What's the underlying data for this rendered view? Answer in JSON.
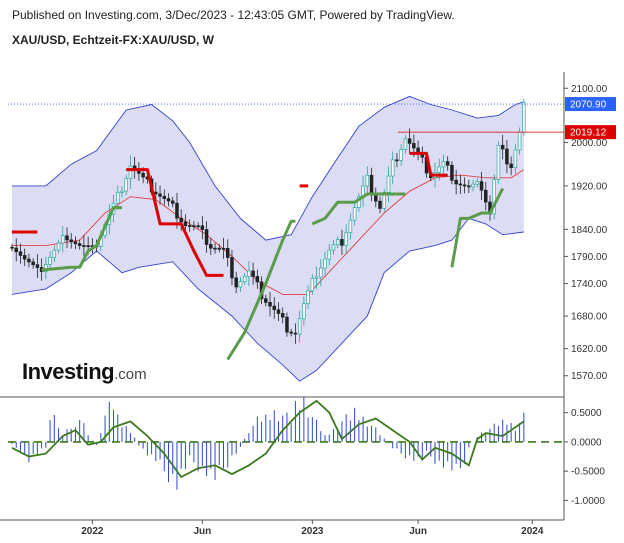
{
  "header": {
    "published": "Published on Investing.com, 3/Dec/2023 - 12:43:05 GMT, Powered by TradingView.",
    "symbol": "XAU/USD, Echtzeit-FX:XAU/USD, W"
  },
  "logo": {
    "brand": "Investing",
    "domain": ".com"
  },
  "colors": {
    "bull": "#26a69a",
    "bear": "#222222",
    "bb_fill": "#dcdcf5",
    "bb_line": "#3344cc",
    "ma": "#e04040",
    "supertrend_down": "#dd0000",
    "supertrend_up": "#5a9c4a",
    "current_tag": "#2962ff",
    "level_tag": "#dd0000",
    "osc_line": "#3d7a1f",
    "osc_hist": "#2a4ad0"
  },
  "chart_data": [
    {
      "type": "candlestick",
      "title": "XAU/USD, Echtzeit-FX:XAU/USD, W",
      "ylim": [
        1540,
        2130
      ],
      "y_ticks": [
        1570,
        1620,
        1680,
        1740,
        1790,
        1840,
        1920,
        2000,
        2100
      ],
      "y_tick_labels": [
        "1570.00",
        "1620.00",
        "1680.00",
        "1740.00",
        "1790.00",
        "1840.00",
        "1920.00",
        "2000.00",
        "2100.00"
      ],
      "x_ticks": [
        {
          "index": 19,
          "label": "2022"
        },
        {
          "index": 45,
          "label": "Jun"
        },
        {
          "index": 71,
          "label": "2023"
        },
        {
          "index": 96,
          "label": "Jun"
        },
        {
          "index": 123,
          "label": "2024"
        }
      ],
      "price_tags": [
        {
          "value": 2070.9,
          "label": "2070.90",
          "kind": "current"
        },
        {
          "value": 2019.12,
          "label": "2019.12",
          "kind": "level"
        }
      ],
      "close_anchors": [
        [
          0,
          1815
        ],
        [
          3,
          1785
        ],
        [
          6,
          1760
        ],
        [
          10,
          1800
        ],
        [
          13,
          1830
        ],
        [
          16,
          1810
        ],
        [
          19,
          1800
        ],
        [
          22,
          1850
        ],
        [
          25,
          1900
        ],
        [
          28,
          1960
        ],
        [
          31,
          1930
        ],
        [
          34,
          1910
        ],
        [
          38,
          1880
        ],
        [
          41,
          1850
        ],
        [
          44,
          1840
        ],
        [
          47,
          1810
        ],
        [
          50,
          1800
        ],
        [
          53,
          1740
        ],
        [
          56,
          1760
        ],
        [
          59,
          1720
        ],
        [
          62,
          1690
        ],
        [
          65,
          1660
        ],
        [
          67,
          1650
        ],
        [
          69,
          1700
        ],
        [
          72,
          1760
        ],
        [
          75,
          1800
        ],
        [
          78,
          1820
        ],
        [
          81,
          1880
        ],
        [
          84,
          1930
        ],
        [
          87,
          1880
        ],
        [
          90,
          1960
        ],
        [
          93,
          2010
        ],
        [
          96,
          1975
        ],
        [
          99,
          1940
        ],
        [
          102,
          1960
        ],
        [
          105,
          1930
        ],
        [
          108,
          1915
        ],
        [
          111,
          1920
        ],
        [
          113,
          1870
        ],
        [
          115,
          1990
        ],
        [
          118,
          1960
        ],
        [
          120,
          2019
        ],
        [
          121,
          2071
        ]
      ],
      "bollinger": {
        "upper": [
          [
            0,
            1920
          ],
          [
            8,
            1920
          ],
          [
            14,
            1960
          ],
          [
            20,
            1985
          ],
          [
            27,
            2060
          ],
          [
            33,
            2070
          ],
          [
            38,
            2040
          ],
          [
            42,
            2000
          ],
          [
            48,
            1920
          ],
          [
            54,
            1860
          ],
          [
            60,
            1820
          ],
          [
            66,
            1830
          ],
          [
            71,
            1900
          ],
          [
            76,
            1960
          ],
          [
            82,
            2030
          ],
          [
            88,
            2065
          ],
          [
            94,
            2085
          ],
          [
            99,
            2070
          ],
          [
            104,
            2060
          ],
          [
            110,
            2045
          ],
          [
            115,
            2050
          ],
          [
            119,
            2070
          ],
          [
            121,
            2075
          ]
        ],
        "middle": [
          [
            0,
            1810
          ],
          [
            8,
            1810
          ],
          [
            16,
            1820
          ],
          [
            22,
            1870
          ],
          [
            28,
            1900
          ],
          [
            34,
            1895
          ],
          [
            40,
            1860
          ],
          [
            46,
            1830
          ],
          [
            52,
            1790
          ],
          [
            58,
            1745
          ],
          [
            64,
            1720
          ],
          [
            70,
            1720
          ],
          [
            76,
            1770
          ],
          [
            82,
            1820
          ],
          [
            88,
            1870
          ],
          [
            94,
            1910
          ],
          [
            100,
            1935
          ],
          [
            106,
            1940
          ],
          [
            112,
            1935
          ],
          [
            118,
            1935
          ],
          [
            121,
            1950
          ]
        ],
        "lower": [
          [
            0,
            1720
          ],
          [
            8,
            1730
          ],
          [
            14,
            1760
          ],
          [
            20,
            1800
          ],
          [
            26,
            1760
          ],
          [
            30,
            1770
          ],
          [
            38,
            1780
          ],
          [
            44,
            1730
          ],
          [
            52,
            1680
          ],
          [
            58,
            1630
          ],
          [
            64,
            1590
          ],
          [
            68,
            1560
          ],
          [
            72,
            1580
          ],
          [
            78,
            1630
          ],
          [
            84,
            1680
          ],
          [
            88,
            1760
          ],
          [
            94,
            1800
          ],
          [
            100,
            1810
          ],
          [
            104,
            1820
          ],
          [
            108,
            1860
          ],
          [
            112,
            1850
          ],
          [
            116,
            1830
          ],
          [
            121,
            1835
          ]
        ]
      },
      "supertrend": [
        {
          "direction": "down",
          "points": [
            [
              0,
              1835
            ],
            [
              6,
              1835
            ]
          ]
        },
        {
          "direction": "up",
          "points": [
            [
              7,
              1765
            ],
            [
              14,
              1770
            ],
            [
              16,
              1770
            ],
            [
              18,
              1800
            ],
            [
              20,
              1810
            ],
            [
              24,
              1880
            ],
            [
              26,
              1880
            ]
          ]
        },
        {
          "direction": "down",
          "points": [
            [
              27,
              1950
            ],
            [
              32,
              1950
            ],
            [
              35,
              1850
            ],
            [
              40,
              1850
            ],
            [
              43,
              1800
            ],
            [
              46,
              1755
            ],
            [
              50,
              1755
            ]
          ]
        },
        {
          "direction": "up",
          "points": [
            [
              51,
              1600
            ],
            [
              55,
              1650
            ],
            [
              60,
              1740
            ],
            [
              64,
              1820
            ],
            [
              66,
              1855
            ],
            [
              67,
              1855
            ]
          ]
        },
        {
          "direction": "down",
          "points": [
            [
              68,
              1920
            ],
            [
              70,
              1920
            ]
          ]
        },
        {
          "direction": "up",
          "points": [
            [
              71,
              1850
            ],
            [
              74,
              1860
            ],
            [
              77,
              1890
            ],
            [
              81,
              1890
            ],
            [
              84,
              1905
            ],
            [
              86,
              1905
            ],
            [
              90,
              1905
            ],
            [
              93,
              1905
            ]
          ]
        },
        {
          "direction": "down",
          "points": [
            [
              94,
              1980
            ],
            [
              98,
              1980
            ],
            [
              99,
              1940
            ],
            [
              103,
              1940
            ]
          ]
        },
        {
          "direction": "up",
          "points": [
            [
              104,
              1770
            ],
            [
              106,
              1860
            ],
            [
              108,
              1860
            ],
            [
              111,
              1870
            ],
            [
              113,
              1870
            ],
            [
              115,
              1900
            ],
            [
              116,
              1915
            ]
          ]
        }
      ]
    },
    {
      "type": "oscillator",
      "ylim": [
        -1.3,
        0.75
      ],
      "y_ticks": [
        0.5,
        0.0,
        -0.5,
        -1.0
      ],
      "y_tick_labels": [
        "0.5000",
        "0.0000",
        "-0.5000",
        "-1.0000"
      ],
      "zero_line": 0.0,
      "line": [
        [
          0,
          -0.1
        ],
        [
          4,
          -0.25
        ],
        [
          8,
          -0.2
        ],
        [
          12,
          0.1
        ],
        [
          15,
          0.2
        ],
        [
          18,
          -0.05
        ],
        [
          21,
          0.0
        ],
        [
          24,
          0.25
        ],
        [
          28,
          0.35
        ],
        [
          32,
          0.1
        ],
        [
          36,
          -0.2
        ],
        [
          40,
          -0.6
        ],
        [
          44,
          -0.45
        ],
        [
          48,
          -0.4
        ],
        [
          52,
          -0.55
        ],
        [
          56,
          -0.4
        ],
        [
          60,
          -0.2
        ],
        [
          64,
          0.2
        ],
        [
          68,
          0.5
        ],
        [
          72,
          0.7
        ],
        [
          75,
          0.5
        ],
        [
          78,
          0.05
        ],
        [
          82,
          0.3
        ],
        [
          86,
          0.4
        ],
        [
          90,
          0.2
        ],
        [
          94,
          0.0
        ],
        [
          97,
          -0.3
        ],
        [
          100,
          -0.1
        ],
        [
          104,
          -0.2
        ],
        [
          108,
          -0.4
        ],
        [
          110,
          0.05
        ],
        [
          112,
          0.15
        ],
        [
          116,
          0.1
        ],
        [
          118,
          0.2
        ],
        [
          121,
          0.35
        ]
      ],
      "histogram": [
        [
          0,
          -0.05
        ],
        [
          2,
          -0.15
        ],
        [
          4,
          -0.3
        ],
        [
          6,
          -0.2
        ],
        [
          8,
          -0.1
        ],
        [
          9,
          0.3
        ],
        [
          10,
          0.5
        ],
        [
          11,
          0.2
        ],
        [
          12,
          0.1
        ],
        [
          14,
          0.3
        ],
        [
          15,
          0.25
        ],
        [
          17,
          0.35
        ],
        [
          18,
          0.1
        ],
        [
          20,
          -0.05
        ],
        [
          21,
          0.2
        ],
        [
          22,
          0.45
        ],
        [
          23,
          0.55
        ],
        [
          24,
          0.6
        ],
        [
          25,
          0.4
        ],
        [
          26,
          0.3
        ],
        [
          27,
          0.25
        ],
        [
          28,
          0.2
        ],
        [
          30,
          -0.05
        ],
        [
          32,
          -0.2
        ],
        [
          34,
          -0.3
        ],
        [
          36,
          -0.5
        ],
        [
          38,
          -0.6
        ],
        [
          39,
          -0.7
        ],
        [
          40,
          -0.55
        ],
        [
          42,
          -0.3
        ],
        [
          44,
          -0.4
        ],
        [
          46,
          -0.5
        ],
        [
          48,
          -0.6
        ],
        [
          50,
          -0.45
        ],
        [
          52,
          -0.25
        ],
        [
          54,
          -0.1
        ],
        [
          56,
          0.2
        ],
        [
          58,
          0.35
        ],
        [
          60,
          0.4
        ],
        [
          62,
          0.5
        ],
        [
          64,
          0.45
        ],
        [
          66,
          0.35
        ],
        [
          67,
          0.6
        ],
        [
          68,
          0.65
        ],
        [
          69,
          0.7
        ],
        [
          70,
          0.55
        ],
        [
          72,
          0.3
        ],
        [
          74,
          0.1
        ],
        [
          76,
          0.2
        ],
        [
          78,
          0.35
        ],
        [
          80,
          0.4
        ],
        [
          81,
          0.5
        ],
        [
          82,
          0.45
        ],
        [
          84,
          0.35
        ],
        [
          86,
          0.2
        ],
        [
          88,
          0.05
        ],
        [
          90,
          -0.1
        ],
        [
          92,
          -0.2
        ],
        [
          94,
          -0.25
        ],
        [
          96,
          -0.3
        ],
        [
          98,
          -0.2
        ],
        [
          100,
          -0.3
        ],
        [
          101,
          -0.35
        ],
        [
          103,
          -0.4
        ],
        [
          105,
          -0.5
        ],
        [
          106,
          -0.45
        ],
        [
          107,
          -0.3
        ],
        [
          108,
          -0.1
        ],
        [
          110,
          0.1
        ],
        [
          112,
          0.2
        ],
        [
          114,
          0.25
        ],
        [
          115,
          0.3
        ],
        [
          117,
          0.35
        ],
        [
          119,
          0.25
        ],
        [
          121,
          0.4
        ]
      ]
    }
  ]
}
